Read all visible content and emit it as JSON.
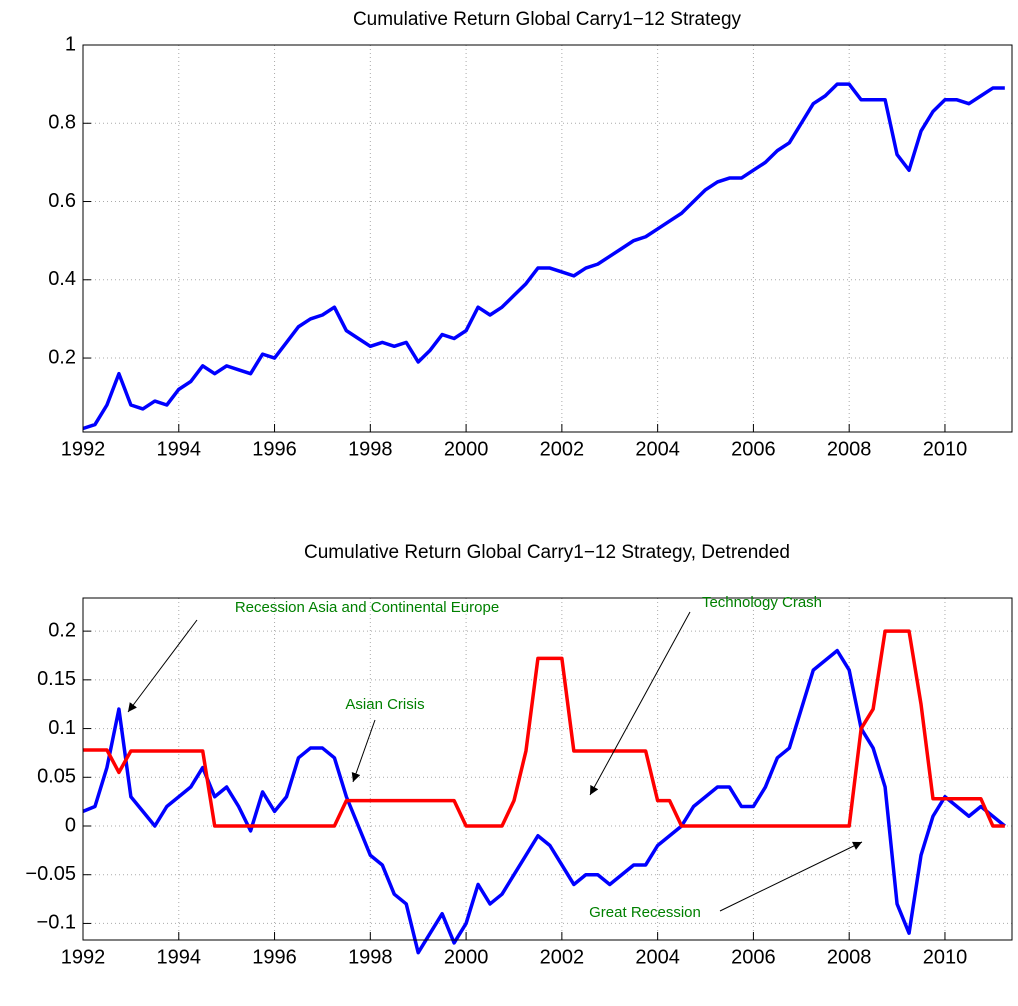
{
  "chart_data": [
    {
      "type": "line",
      "title": "Cumulative Return Global Carry1−12 Strategy",
      "x": [
        1992,
        1992.25,
        1992.5,
        1992.75,
        1993,
        1993.25,
        1993.5,
        1993.75,
        1994,
        1994.25,
        1994.5,
        1994.75,
        1995,
        1995.25,
        1995.5,
        1995.75,
        1996,
        1996.25,
        1996.5,
        1996.75,
        1997,
        1997.25,
        1997.5,
        1997.75,
        1998,
        1998.25,
        1998.5,
        1998.75,
        1999,
        1999.25,
        1999.5,
        1999.75,
        2000,
        2000.25,
        2000.5,
        2000.75,
        2001,
        2001.25,
        2001.5,
        2001.75,
        2002,
        2002.25,
        2002.5,
        2002.75,
        2003,
        2003.25,
        2003.5,
        2003.75,
        2004,
        2004.25,
        2004.5,
        2004.75,
        2005,
        2005.25,
        2005.5,
        2005.75,
        2006,
        2006.25,
        2006.5,
        2006.75,
        2007,
        2007.25,
        2007.5,
        2007.75,
        2008,
        2008.25,
        2008.5,
        2008.75,
        2009,
        2009.25,
        2009.5,
        2009.75,
        2010,
        2010.25,
        2010.5,
        2010.75,
        2011,
        2011.25
      ],
      "series": [
        {
          "color": "#0000ff",
          "values": [
            0.02,
            0.03,
            0.08,
            0.16,
            0.08,
            0.07,
            0.09,
            0.08,
            0.12,
            0.14,
            0.18,
            0.16,
            0.18,
            0.17,
            0.16,
            0.21,
            0.2,
            0.24,
            0.28,
            0.3,
            0.31,
            0.33,
            0.27,
            0.25,
            0.23,
            0.24,
            0.23,
            0.24,
            0.19,
            0.22,
            0.26,
            0.25,
            0.27,
            0.33,
            0.31,
            0.33,
            0.36,
            0.39,
            0.43,
            0.43,
            0.42,
            0.41,
            0.43,
            0.44,
            0.46,
            0.48,
            0.5,
            0.51,
            0.53,
            0.55,
            0.57,
            0.6,
            0.63,
            0.65,
            0.66,
            0.66,
            0.68,
            0.7,
            0.73,
            0.75,
            0.8,
            0.85,
            0.87,
            0.9,
            0.9,
            0.86,
            0.86,
            0.86,
            0.72,
            0.68,
            0.78,
            0.83,
            0.86,
            0.86,
            0.85,
            0.87,
            0.89,
            0.89
          ]
        }
      ],
      "xlim": [
        1992,
        2011.4
      ],
      "xticks": [
        1992,
        1994,
        1996,
        1998,
        2000,
        2002,
        2004,
        2006,
        2008,
        2010
      ],
      "ylim": [
        0.011,
        1
      ],
      "yticks": [
        0.2,
        0.4,
        0.6,
        0.8,
        1
      ],
      "grid": true
    },
    {
      "type": "line",
      "title": "Cumulative Return Global Carry1−12 Strategy, Detrended",
      "x": [
        1992,
        1992.25,
        1992.5,
        1992.75,
        1993,
        1993.25,
        1993.5,
        1993.75,
        1994,
        1994.25,
        1994.5,
        1994.75,
        1995,
        1995.25,
        1995.5,
        1995.75,
        1996,
        1996.25,
        1996.5,
        1996.75,
        1997,
        1997.25,
        1997.5,
        1997.75,
        1998,
        1998.25,
        1998.5,
        1998.75,
        1999,
        1999.25,
        1999.5,
        1999.75,
        2000,
        2000.25,
        2000.5,
        2000.75,
        2001,
        2001.25,
        2001.5,
        2001.75,
        2002,
        2002.25,
        2002.5,
        2002.75,
        2003,
        2003.25,
        2003.5,
        2003.75,
        2004,
        2004.25,
        2004.5,
        2004.75,
        2005,
        2005.25,
        2005.5,
        2005.75,
        2006,
        2006.25,
        2006.5,
        2006.75,
        2007,
        2007.25,
        2007.5,
        2007.75,
        2008,
        2008.25,
        2008.5,
        2008.75,
        2009,
        2009.25,
        2009.5,
        2009.75,
        2010,
        2010.25,
        2010.5,
        2010.75,
        2011,
        2011.25
      ],
      "series": [
        {
          "color": "#0000ff",
          "values": [
            0.015,
            0.02,
            0.06,
            0.12,
            0.03,
            0.015,
            0,
            0.02,
            0.03,
            0.04,
            0.06,
            0.03,
            0.04,
            0.02,
            -0.005,
            0.035,
            0.015,
            0.03,
            0.07,
            0.08,
            0.08,
            0.07,
            0.03,
            0,
            -0.03,
            -0.04,
            -0.07,
            -0.08,
            -0.13,
            -0.11,
            -0.09,
            -0.12,
            -0.1,
            -0.06,
            -0.08,
            -0.07,
            -0.05,
            -0.03,
            -0.01,
            -0.02,
            -0.04,
            -0.06,
            -0.05,
            -0.05,
            -0.06,
            -0.05,
            -0.04,
            -0.04,
            -0.02,
            -0.01,
            0,
            0.02,
            0.03,
            0.04,
            0.04,
            0.02,
            0.02,
            0.04,
            0.07,
            0.08,
            0.12,
            0.16,
            0.17,
            0.18,
            0.16,
            0.1,
            0.08,
            0.04,
            -0.08,
            -0.11,
            -0.03,
            0.01,
            0.03,
            0.02,
            0.01,
            0.02,
            0.01,
            0
          ]
        },
        {
          "color": "#ff0000",
          "values": [
            0.078,
            0.078,
            0.078,
            0.055,
            0.077,
            0.077,
            0.077,
            0.077,
            0.077,
            0.077,
            0.077,
            0,
            0,
            0,
            0,
            0,
            0,
            0,
            0,
            0,
            0,
            0,
            0.026,
            0.026,
            0.026,
            0.026,
            0.026,
            0.026,
            0.026,
            0.026,
            0.026,
            0.026,
            0,
            0,
            0,
            0,
            0.026,
            0.077,
            0.172,
            0.172,
            0.172,
            0.077,
            0.077,
            0.077,
            0.077,
            0.077,
            0.077,
            0.077,
            0.026,
            0.026,
            0,
            0,
            0,
            0,
            0,
            0,
            0,
            0,
            0,
            0,
            0,
            0,
            0,
            0,
            0,
            0.1,
            0.12,
            0.2,
            0.2,
            0.2,
            0.125,
            0.028,
            0.028,
            0.028,
            0.028,
            0.028,
            0,
            0
          ]
        }
      ],
      "xlim": [
        1992,
        2011.4
      ],
      "xticks": [
        1992,
        1994,
        1996,
        1998,
        2000,
        2002,
        2004,
        2006,
        2008,
        2010
      ],
      "ylim": [
        -0.117,
        0.234
      ],
      "yticks": [
        {
          "value": -0.1,
          "label": "−0.1"
        },
        {
          "value": -0.05,
          "label": "−0.05"
        },
        0,
        0.05,
        0.1,
        0.15,
        0.2
      ],
      "grid": true,
      "annotations": [
        "Recession Asia and Continental Europe",
        "Asian Crisis",
        "Technology Crash",
        "Great Recession"
      ],
      "annotation_color": "#008000"
    }
  ]
}
